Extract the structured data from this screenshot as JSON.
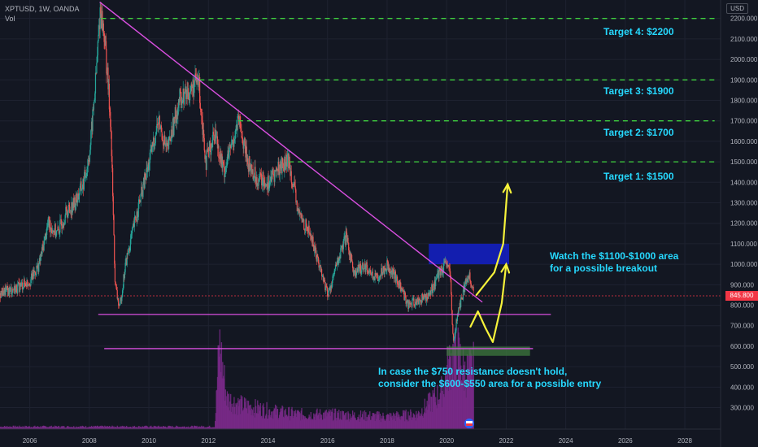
{
  "header": {
    "symbol": "XPTUSD, 1W, OANDA",
    "vol": "Vol"
  },
  "axis": {
    "currency": "USD",
    "current_price": "845.800",
    "current_price_value": 845.8
  },
  "chart_data": {
    "type": "candlestick",
    "x_labels": [
      "2006",
      "2008",
      "2010",
      "2012",
      "2014",
      "2016",
      "2018",
      "2020",
      "2022",
      "2024",
      "2026",
      "2028"
    ],
    "y_ticks": [
      300,
      400,
      500,
      600,
      700,
      800,
      900,
      1000,
      1100,
      1200,
      1300,
      1400,
      1500,
      1600,
      1700,
      1800,
      1900,
      2000,
      2100,
      2200
    ],
    "y_tick_labels": [
      "300.000",
      "400.000",
      "500.000",
      "600.000",
      "700.000",
      "800.000",
      "900.000",
      "1000.000",
      "1100.000",
      "1200.000",
      "1300.000",
      "1400.000",
      "1500.000",
      "1600.000",
      "1700.000",
      "1800.000",
      "1900.000",
      "2000.000",
      "2100.000",
      "2200.000"
    ],
    "xlim": [
      2005,
      2029.2
    ],
    "ylim": [
      195,
      2290
    ],
    "price_path": [
      [
        2005.0,
        860
      ],
      [
        2005.5,
        880
      ],
      [
        2006.0,
        920
      ],
      [
        2006.3,
        1000
      ],
      [
        2006.6,
        1200
      ],
      [
        2006.9,
        1150
      ],
      [
        2007.2,
        1250
      ],
      [
        2007.5,
        1300
      ],
      [
        2007.8,
        1400
      ],
      [
        2008.0,
        1550
      ],
      [
        2008.2,
        1900
      ],
      [
        2008.35,
        2250
      ],
      [
        2008.5,
        2100
      ],
      [
        2008.7,
        1700
      ],
      [
        2008.85,
        900
      ],
      [
        2009.0,
        780
      ],
      [
        2009.2,
        1000
      ],
      [
        2009.5,
        1200
      ],
      [
        2010.0,
        1500
      ],
      [
        2010.3,
        1700
      ],
      [
        2010.6,
        1550
      ],
      [
        2011.0,
        1800
      ],
      [
        2011.4,
        1850
      ],
      [
        2011.65,
        1900
      ],
      [
        2011.9,
        1500
      ],
      [
        2012.2,
        1650
      ],
      [
        2012.5,
        1450
      ],
      [
        2012.8,
        1600
      ],
      [
        2013.0,
        1700
      ],
      [
        2013.3,
        1500
      ],
      [
        2013.6,
        1420
      ],
      [
        2014.0,
        1400
      ],
      [
        2014.4,
        1480
      ],
      [
        2014.7,
        1500
      ],
      [
        2015.0,
        1250
      ],
      [
        2015.4,
        1150
      ],
      [
        2015.7,
        1000
      ],
      [
        2016.0,
        850
      ],
      [
        2016.3,
        1000
      ],
      [
        2016.6,
        1130
      ],
      [
        2016.9,
        950
      ],
      [
        2017.2,
        1000
      ],
      [
        2017.6,
        930
      ],
      [
        2018.0,
        1000
      ],
      [
        2018.4,
        900
      ],
      [
        2018.7,
        800
      ],
      [
        2019.0,
        820
      ],
      [
        2019.4,
        850
      ],
      [
        2019.7,
        950
      ],
      [
        2020.0,
        1000
      ],
      [
        2020.1,
        950
      ],
      [
        2020.2,
        620
      ],
      [
        2020.35,
        750
      ],
      [
        2020.6,
        900
      ],
      [
        2020.75,
        950
      ],
      [
        2020.9,
        846
      ]
    ],
    "volume_profile": [
      [
        2005.0,
        0.02
      ],
      [
        2012.2,
        0.02
      ],
      [
        2012.35,
        0.7
      ],
      [
        2012.6,
        0.25
      ],
      [
        2013.0,
        0.2
      ],
      [
        2014.0,
        0.15
      ],
      [
        2015.0,
        0.12
      ],
      [
        2016.0,
        0.12
      ],
      [
        2017.0,
        0.11
      ],
      [
        2018.0,
        0.1
      ],
      [
        2019.0,
        0.12
      ],
      [
        2019.8,
        0.3
      ],
      [
        2020.1,
        0.55
      ],
      [
        2020.3,
        0.65
      ],
      [
        2020.6,
        0.45
      ],
      [
        2020.9,
        0.5
      ]
    ],
    "resistance_trendline": {
      "from": [
        2008.35,
        2280
      ],
      "to": [
        2021.2,
        815
      ]
    },
    "support_lines": [
      {
        "price": 755,
        "from": 2008.3,
        "to": 2023.5
      },
      {
        "price": 588,
        "from": 2008.5,
        "to": 2022.9
      }
    ],
    "target_lines": [
      {
        "price": 2200,
        "from": 2008.4,
        "to": 2029.0,
        "label": "Target 4: $2200"
      },
      {
        "price": 1900,
        "from": 2011.7,
        "to": 2029.0,
        "label": "Target 3: $1900"
      },
      {
        "price": 1700,
        "from": 2013.0,
        "to": 2029.0,
        "label": "Target 2: $1700"
      },
      {
        "price": 1500,
        "from": 2014.7,
        "to": 2029.0,
        "label": "Target 1: $1500"
      }
    ],
    "zones": [
      {
        "from": 2019.4,
        "to": 2022.1,
        "low": 1000,
        "high": 1100,
        "color": "#1420c8"
      },
      {
        "from": 2020.0,
        "to": 2022.8,
        "low": 553,
        "high": 598,
        "color": "#3d7a3d"
      }
    ],
    "arrows": [
      {
        "points": [
          [
            2021.0,
            850
          ],
          [
            2021.6,
            960
          ],
          [
            2021.9,
            1100
          ],
          [
            2022.05,
            1390
          ]
        ]
      },
      {
        "points": [
          [
            2020.8,
            695
          ],
          [
            2021.05,
            770
          ],
          [
            2021.3,
            690
          ],
          [
            2021.55,
            620
          ],
          [
            2021.85,
            810
          ],
          [
            2022.0,
            1000
          ]
        ]
      }
    ],
    "annotations": [
      {
        "lines": [
          "Watch the $1100-$1000 area",
          "for a possible breakout"
        ]
      },
      {
        "lines": [
          "In case the $750 resistance doesn't hold,",
          "consider the $600-$550 area for a possible entry"
        ]
      }
    ]
  }
}
